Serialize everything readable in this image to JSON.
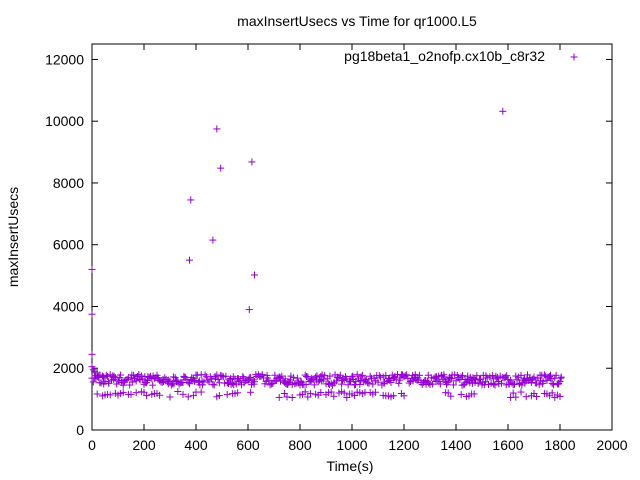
{
  "chart_data": {
    "type": "scatter",
    "title": "maxInsertUsecs vs Time for qr1000.L5",
    "xlabel": "Time(s)",
    "ylabel": "maxInsertUsecs",
    "xlim": [
      0,
      2000
    ],
    "ylim": [
      0,
      12500
    ],
    "xticks": [
      0,
      200,
      400,
      600,
      800,
      1000,
      1200,
      1400,
      1600,
      1800,
      2000
    ],
    "yticks": [
      0,
      2000,
      4000,
      6000,
      8000,
      10000,
      12000
    ],
    "grid": false,
    "legend_position": "top-right",
    "series": [
      {
        "name": "pg18beta1_o2nofp.cx10b_c8r32",
        "color": "#9400d3",
        "marker": "+",
        "outliers": [
          {
            "x": 0,
            "y": 5200
          },
          {
            "x": 0,
            "y": 3750
          },
          {
            "x": 0,
            "y": 2450
          },
          {
            "x": 380,
            "y": 7450
          },
          {
            "x": 375,
            "y": 5500
          },
          {
            "x": 465,
            "y": 6150
          },
          {
            "x": 480,
            "y": 9750
          },
          {
            "x": 495,
            "y": 8480
          },
          {
            "x": 615,
            "y": 8680
          },
          {
            "x": 605,
            "y": 3900
          },
          {
            "x": 625,
            "y": 5020
          },
          {
            "x": 1580,
            "y": 10320
          }
        ],
        "band": {
          "x_range": [
            0,
            1800
          ],
          "step": 10,
          "main_y_range": [
            1450,
            1800
          ],
          "low_y_range": [
            1050,
            1250
          ],
          "low_gaps": [
            [
              620,
              700
            ],
            [
              1280,
              1330
            ],
            [
              1490,
              1600
            ]
          ],
          "startup_decay": [
            {
              "x": 0,
              "y": 2050
            },
            {
              "x": 5,
              "y": 1950
            },
            {
              "x": 10,
              "y": 1900
            },
            {
              "x": 20,
              "y": 1850
            },
            {
              "x": 30,
              "y": 1780
            },
            {
              "x": 45,
              "y": 1720
            }
          ]
        }
      }
    ]
  }
}
